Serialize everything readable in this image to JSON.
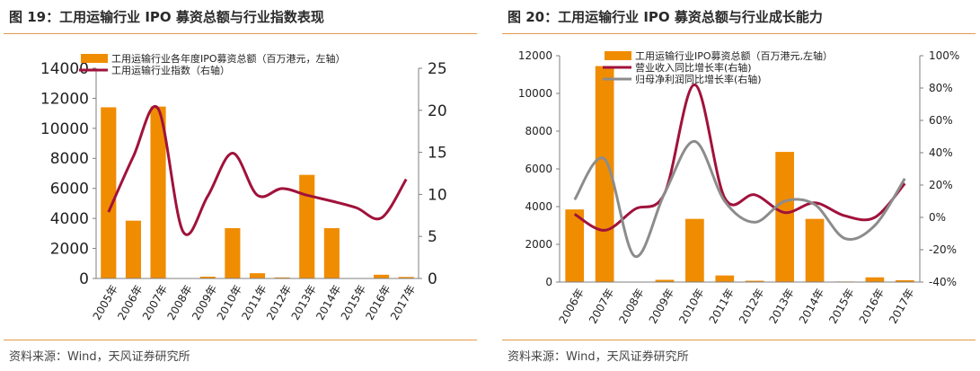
{
  "colors": {
    "bar": "#F08C00",
    "line1": "#A0123B",
    "line2": "#8C8C8C",
    "rule": "#E39A4A"
  },
  "panels": [
    {
      "title": "图 19：工用运输行业 IPO 募资总额与行业指数表现",
      "source": "资料来源：Wind，天风证券研究所"
    },
    {
      "title": "图 20：工用运输行业 IPO 募资总额与行业成长能力",
      "source": "资料来源：Wind，天风证券研究所"
    }
  ],
  "chart_data": [
    {
      "type": "bar",
      "categories": [
        "2005年",
        "2006年",
        "2007年",
        "2008年",
        "2009年",
        "2010年",
        "2011年",
        "2012年",
        "2013年",
        "2014年",
        "2015年",
        "2016年",
        "2017年"
      ],
      "ylim": [
        0,
        14000
      ],
      "y2lim": [
        0,
        25
      ],
      "yticks": [
        "0",
        "2000",
        "4000",
        "6000",
        "8000",
        "10000",
        "12000",
        "14000"
      ],
      "y2ticks": [
        "0",
        "5",
        "10",
        "15",
        "20",
        "25"
      ],
      "legend_position": "top-center",
      "grid": false,
      "series": [
        {
          "name": "工用运输行业各年度IPO募资总额（百万港元，左轴）",
          "type": "bar",
          "axis": "left",
          "values": [
            11400,
            3850,
            11450,
            0,
            120,
            3350,
            350,
            70,
            6900,
            3350,
            30,
            250,
            100
          ]
        },
        {
          "name": "工用运输行业指数（右轴）",
          "type": "line",
          "axis": "right",
          "values": [
            7.9,
            14.5,
            20.2,
            5.6,
            9.8,
            14.9,
            9.9,
            10.7,
            9.9,
            9.2,
            8.4,
            7.2,
            11.8
          ]
        }
      ]
    },
    {
      "type": "bar",
      "categories": [
        "2006年",
        "2007年",
        "2008年",
        "2009年",
        "2010年",
        "2011年",
        "2012年",
        "2013年",
        "2014年",
        "2015年",
        "2016年",
        "2017年"
      ],
      "ylim": [
        0,
        12000
      ],
      "y2lim": [
        -40,
        100
      ],
      "yticks": [
        "0",
        "2000",
        "4000",
        "6000",
        "8000",
        "10000",
        "12000"
      ],
      "y2ticks": [
        "-40%",
        "-20%",
        "0%",
        "20%",
        "40%",
        "60%",
        "80%",
        "100%"
      ],
      "legend_position": "top-center",
      "grid": false,
      "series": [
        {
          "name": "工用运输行业IPO募资总额（百万港元,左轴）",
          "type": "bar",
          "axis": "left",
          "values": [
            3850,
            11450,
            0,
            120,
            3350,
            350,
            70,
            6900,
            3350,
            30,
            250,
            100
          ]
        },
        {
          "name": "营业收入同比增长率(右轴)",
          "type": "line",
          "axis": "right",
          "values": [
            2,
            -8,
            5,
            15,
            82,
            12,
            14,
            3,
            9,
            1,
            0,
            21
          ]
        },
        {
          "name": "归母净利润同比增长率(右轴)",
          "type": "line",
          "axis": "right",
          "values": [
            11,
            36,
            -24,
            15,
            47,
            10,
            -3,
            10,
            8,
            -13,
            -5,
            24
          ]
        }
      ]
    }
  ]
}
